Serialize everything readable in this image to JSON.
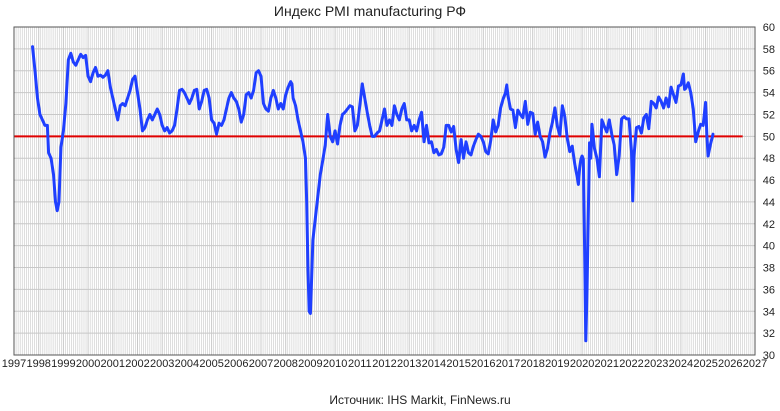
{
  "chart_data": {
    "type": "line",
    "title": "Индекс PMI manufacturing РФ",
    "source": "Источник: IHS Markit,  FinNews.ru",
    "xlabel": "",
    "ylabel": "",
    "xlim": [
      1997,
      2027
    ],
    "ylim": [
      30,
      60
    ],
    "x_ticks": [
      "1997",
      "1998",
      "1999",
      "2000",
      "2001",
      "2002",
      "2003",
      "2004",
      "2005",
      "2006",
      "2007",
      "2008",
      "2009",
      "2010",
      "2011",
      "2012",
      "2013",
      "2014",
      "2015",
      "2016",
      "2017",
      "2018",
      "2019",
      "2020",
      "2021",
      "2022",
      "2023",
      "2024",
      "2025",
      "2026",
      "2027"
    ],
    "y_ticks": [
      "30",
      "32",
      "34",
      "36",
      "38",
      "40",
      "42",
      "44",
      "46",
      "48",
      "50",
      "52",
      "54",
      "56",
      "58",
      "60"
    ],
    "grid": true,
    "reference_line": {
      "y": 50,
      "color": "#e00000"
    },
    "colors": {
      "series": "#1f3fff",
      "grid": "#c8c8c8",
      "axis": "#555555"
    },
    "series": [
      {
        "color": "#1f3fff",
        "points": [
          [
            1997.75,
            58.2
          ],
          [
            1997.85,
            56.0
          ],
          [
            1997.95,
            53.5
          ],
          [
            1998.05,
            52.0
          ],
          [
            1998.15,
            51.5
          ],
          [
            1998.25,
            51.0
          ],
          [
            1998.35,
            51.0
          ],
          [
            1998.4,
            48.5
          ],
          [
            1998.5,
            48.0
          ],
          [
            1998.6,
            46.5
          ],
          [
            1998.68,
            44.0
          ],
          [
            1998.75,
            43.2
          ],
          [
            1998.82,
            44.0
          ],
          [
            1998.9,
            49.0
          ],
          [
            1999.0,
            50.5
          ],
          [
            1999.1,
            53.0
          ],
          [
            1999.2,
            57.0
          ],
          [
            1999.3,
            57.6
          ],
          [
            1999.4,
            56.8
          ],
          [
            1999.5,
            56.5
          ],
          [
            1999.6,
            57.0
          ],
          [
            1999.7,
            57.5
          ],
          [
            1999.8,
            57.2
          ],
          [
            1999.9,
            57.4
          ],
          [
            2000.0,
            55.5
          ],
          [
            2000.1,
            55.0
          ],
          [
            2000.2,
            55.8
          ],
          [
            2000.3,
            56.3
          ],
          [
            2000.4,
            55.5
          ],
          [
            2000.5,
            55.6
          ],
          [
            2000.6,
            55.4
          ],
          [
            2000.7,
            55.6
          ],
          [
            2000.8,
            56.0
          ],
          [
            2000.9,
            54.5
          ],
          [
            2001.0,
            53.5
          ],
          [
            2001.1,
            52.5
          ],
          [
            2001.2,
            51.5
          ],
          [
            2001.3,
            52.8
          ],
          [
            2001.4,
            53.0
          ],
          [
            2001.5,
            52.8
          ],
          [
            2001.6,
            53.5
          ],
          [
            2001.7,
            54.2
          ],
          [
            2001.8,
            55.2
          ],
          [
            2001.9,
            55.5
          ],
          [
            2002.0,
            54.0
          ],
          [
            2002.1,
            52.5
          ],
          [
            2002.2,
            50.5
          ],
          [
            2002.3,
            50.8
          ],
          [
            2002.4,
            51.5
          ],
          [
            2002.5,
            52.0
          ],
          [
            2002.6,
            51.5
          ],
          [
            2002.7,
            52.0
          ],
          [
            2002.8,
            52.5
          ],
          [
            2002.9,
            52.0
          ],
          [
            2003.0,
            51.0
          ],
          [
            2003.1,
            50.5
          ],
          [
            2003.2,
            50.8
          ],
          [
            2003.3,
            50.3
          ],
          [
            2003.4,
            50.5
          ],
          [
            2003.5,
            51.0
          ],
          [
            2003.6,
            52.5
          ],
          [
            2003.7,
            54.2
          ],
          [
            2003.8,
            54.3
          ],
          [
            2003.9,
            54.0
          ],
          [
            2004.0,
            53.5
          ],
          [
            2004.1,
            53.0
          ],
          [
            2004.2,
            53.5
          ],
          [
            2004.3,
            54.2
          ],
          [
            2004.4,
            54.3
          ],
          [
            2004.5,
            52.5
          ],
          [
            2004.6,
            53.2
          ],
          [
            2004.7,
            54.2
          ],
          [
            2004.8,
            54.3
          ],
          [
            2004.9,
            53.5
          ],
          [
            2005.0,
            51.5
          ],
          [
            2005.1,
            51.2
          ],
          [
            2005.2,
            50.2
          ],
          [
            2005.3,
            51.2
          ],
          [
            2005.4,
            51.0
          ],
          [
            2005.5,
            51.5
          ],
          [
            2005.6,
            52.5
          ],
          [
            2005.7,
            53.5
          ],
          [
            2005.8,
            54.0
          ],
          [
            2005.9,
            53.5
          ],
          [
            2006.0,
            53.2
          ],
          [
            2006.1,
            52.5
          ],
          [
            2006.2,
            51.3
          ],
          [
            2006.3,
            52.0
          ],
          [
            2006.4,
            53.8
          ],
          [
            2006.5,
            54.0
          ],
          [
            2006.6,
            53.5
          ],
          [
            2006.7,
            54.2
          ],
          [
            2006.8,
            55.8
          ],
          [
            2006.9,
            56.0
          ],
          [
            2007.0,
            55.5
          ],
          [
            2007.1,
            53.0
          ],
          [
            2007.2,
            52.5
          ],
          [
            2007.3,
            52.3
          ],
          [
            2007.4,
            53.5
          ],
          [
            2007.5,
            54.2
          ],
          [
            2007.6,
            53.5
          ],
          [
            2007.7,
            52.5
          ],
          [
            2007.8,
            53.0
          ],
          [
            2007.9,
            52.5
          ],
          [
            2008.0,
            53.8
          ],
          [
            2008.1,
            54.5
          ],
          [
            2008.2,
            55.0
          ],
          [
            2008.25,
            54.8
          ],
          [
            2008.3,
            53.5
          ],
          [
            2008.4,
            52.8
          ],
          [
            2008.5,
            51.5
          ],
          [
            2008.6,
            50.5
          ],
          [
            2008.7,
            49.5
          ],
          [
            2008.8,
            48.0
          ],
          [
            2008.85,
            44.0
          ],
          [
            2008.9,
            38.0
          ],
          [
            2008.95,
            34.0
          ],
          [
            2009.0,
            33.8
          ],
          [
            2009.05,
            37.0
          ],
          [
            2009.1,
            40.5
          ],
          [
            2009.2,
            42.5
          ],
          [
            2009.3,
            44.5
          ],
          [
            2009.4,
            46.5
          ],
          [
            2009.5,
            47.8
          ],
          [
            2009.6,
            49.2
          ],
          [
            2009.7,
            52.0
          ],
          [
            2009.8,
            50.0
          ],
          [
            2009.9,
            49.5
          ],
          [
            2010.0,
            50.5
          ],
          [
            2010.1,
            49.3
          ],
          [
            2010.2,
            51.0
          ],
          [
            2010.3,
            52.0
          ],
          [
            2010.4,
            52.2
          ],
          [
            2010.5,
            52.5
          ],
          [
            2010.6,
            52.8
          ],
          [
            2010.7,
            52.7
          ],
          [
            2010.8,
            50.5
          ],
          [
            2010.9,
            51.0
          ],
          [
            2011.0,
            52.8
          ],
          [
            2011.1,
            54.8
          ],
          [
            2011.2,
            53.5
          ],
          [
            2011.3,
            52.2
          ],
          [
            2011.4,
            51.0
          ],
          [
            2011.5,
            50.0
          ],
          [
            2011.6,
            50.0
          ],
          [
            2011.7,
            50.3
          ],
          [
            2011.8,
            50.5
          ],
          [
            2011.9,
            51.5
          ],
          [
            2012.0,
            52.5
          ],
          [
            2012.1,
            51.0
          ],
          [
            2012.2,
            51.5
          ],
          [
            2012.3,
            51.0
          ],
          [
            2012.4,
            52.8
          ],
          [
            2012.5,
            52.0
          ],
          [
            2012.6,
            51.5
          ],
          [
            2012.7,
            52.5
          ],
          [
            2012.8,
            53.0
          ],
          [
            2012.9,
            51.5
          ],
          [
            2013.0,
            51.5
          ],
          [
            2013.1,
            50.5
          ],
          [
            2013.2,
            51.0
          ],
          [
            2013.3,
            50.5
          ],
          [
            2013.4,
            51.5
          ],
          [
            2013.5,
            52.2
          ],
          [
            2013.6,
            49.5
          ],
          [
            2013.7,
            51.0
          ],
          [
            2013.8,
            49.4
          ],
          [
            2013.9,
            49.5
          ],
          [
            2014.0,
            48.5
          ],
          [
            2014.1,
            48.8
          ],
          [
            2014.2,
            48.3
          ],
          [
            2014.3,
            48.4
          ],
          [
            2014.4,
            49.0
          ],
          [
            2014.5,
            51.0
          ],
          [
            2014.6,
            51.0
          ],
          [
            2014.7,
            50.4
          ],
          [
            2014.8,
            50.9
          ],
          [
            2014.9,
            48.8
          ],
          [
            2015.0,
            47.6
          ],
          [
            2015.1,
            49.7
          ],
          [
            2015.2,
            48.0
          ],
          [
            2015.3,
            49.5
          ],
          [
            2015.4,
            48.5
          ],
          [
            2015.5,
            48.3
          ],
          [
            2015.6,
            49.1
          ],
          [
            2015.7,
            49.7
          ],
          [
            2015.8,
            50.2
          ],
          [
            2015.9,
            50.0
          ],
          [
            2016.0,
            49.5
          ],
          [
            2016.1,
            48.6
          ],
          [
            2016.2,
            48.4
          ],
          [
            2016.3,
            49.6
          ],
          [
            2016.4,
            51.5
          ],
          [
            2016.5,
            50.4
          ],
          [
            2016.6,
            51.0
          ],
          [
            2016.7,
            52.6
          ],
          [
            2016.8,
            53.4
          ],
          [
            2016.9,
            54.0
          ],
          [
            2016.95,
            54.7
          ],
          [
            2017.0,
            53.7
          ],
          [
            2017.1,
            52.5
          ],
          [
            2017.2,
            52.4
          ],
          [
            2017.3,
            50.8
          ],
          [
            2017.4,
            52.4
          ],
          [
            2017.5,
            52.0
          ],
          [
            2017.6,
            51.7
          ],
          [
            2017.7,
            53.2
          ],
          [
            2017.8,
            51.1
          ],
          [
            2017.9,
            52.2
          ],
          [
            2018.0,
            52.1
          ],
          [
            2018.1,
            50.2
          ],
          [
            2018.2,
            51.3
          ],
          [
            2018.3,
            50.0
          ],
          [
            2018.4,
            49.5
          ],
          [
            2018.5,
            48.1
          ],
          [
            2018.6,
            48.9
          ],
          [
            2018.7,
            50.3
          ],
          [
            2018.8,
            51.3
          ],
          [
            2018.9,
            52.6
          ],
          [
            2019.0,
            50.9
          ],
          [
            2019.1,
            50.1
          ],
          [
            2019.2,
            52.8
          ],
          [
            2019.3,
            51.8
          ],
          [
            2019.4,
            49.8
          ],
          [
            2019.5,
            48.6
          ],
          [
            2019.6,
            49.1
          ],
          [
            2019.7,
            47.5
          ],
          [
            2019.8,
            46.3
          ],
          [
            2019.85,
            45.6
          ],
          [
            2019.9,
            47.1
          ],
          [
            2019.95,
            47.9
          ],
          [
            2020.0,
            48.2
          ],
          [
            2020.05,
            47.9
          ],
          [
            2020.1,
            40.0
          ],
          [
            2020.15,
            31.3
          ],
          [
            2020.2,
            36.0
          ],
          [
            2020.3,
            49.4
          ],
          [
            2020.35,
            48.0
          ],
          [
            2020.4,
            51.1
          ],
          [
            2020.5,
            48.9
          ],
          [
            2020.6,
            48.0
          ],
          [
            2020.7,
            46.3
          ],
          [
            2020.8,
            51.5
          ],
          [
            2020.9,
            50.9
          ],
          [
            2021.0,
            50.4
          ],
          [
            2021.1,
            51.5
          ],
          [
            2021.2,
            50.2
          ],
          [
            2021.3,
            49.2
          ],
          [
            2021.4,
            46.5
          ],
          [
            2021.5,
            48.2
          ],
          [
            2021.6,
            51.6
          ],
          [
            2021.7,
            51.8
          ],
          [
            2021.8,
            51.6
          ],
          [
            2021.9,
            51.6
          ],
          [
            2022.0,
            48.6
          ],
          [
            2022.05,
            44.1
          ],
          [
            2022.1,
            48.2
          ],
          [
            2022.2,
            50.8
          ],
          [
            2022.3,
            50.9
          ],
          [
            2022.4,
            50.3
          ],
          [
            2022.5,
            51.7
          ],
          [
            2022.6,
            52.0
          ],
          [
            2022.7,
            50.7
          ],
          [
            2022.8,
            53.2
          ],
          [
            2022.9,
            53.0
          ],
          [
            2023.0,
            52.6
          ],
          [
            2023.1,
            53.6
          ],
          [
            2023.2,
            53.2
          ],
          [
            2023.3,
            52.6
          ],
          [
            2023.4,
            53.5
          ],
          [
            2023.5,
            52.7
          ],
          [
            2023.6,
            54.5
          ],
          [
            2023.7,
            53.8
          ],
          [
            2023.8,
            53.1
          ],
          [
            2023.9,
            54.6
          ],
          [
            2024.0,
            54.7
          ],
          [
            2024.1,
            55.7
          ],
          [
            2024.15,
            54.3
          ],
          [
            2024.2,
            54.4
          ],
          [
            2024.3,
            54.9
          ],
          [
            2024.4,
            54.0
          ],
          [
            2024.5,
            52.5
          ],
          [
            2024.6,
            49.5
          ],
          [
            2024.7,
            50.4
          ],
          [
            2024.8,
            51.1
          ],
          [
            2024.9,
            51.0
          ],
          [
            2025.0,
            53.1
          ],
          [
            2025.05,
            50.2
          ],
          [
            2025.1,
            48.2
          ],
          [
            2025.2,
            49.3
          ],
          [
            2025.3,
            50.2
          ]
        ]
      }
    ]
  }
}
